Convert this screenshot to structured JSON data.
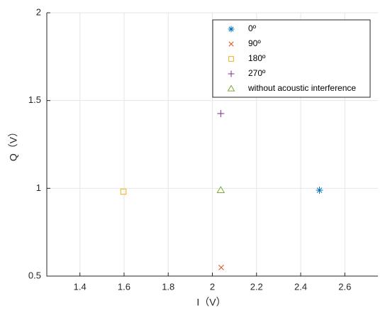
{
  "chart_data": {
    "type": "scatter",
    "xlabel": "I（V）",
    "ylabel": "Q（V）",
    "xlim": [
      1.25,
      2.75
    ],
    "ylim": [
      0.5,
      2
    ],
    "xticks": [
      1.4,
      1.6,
      1.8,
      2,
      2.2,
      2.4,
      2.6
    ],
    "yticks": [
      0.5,
      1,
      1.5,
      2
    ],
    "grid": true,
    "legend": "upper right",
    "series": [
      {
        "name": "0º",
        "color": "#0072BD",
        "marker": "asterisk",
        "x": [
          2.485
        ],
        "values": [
          0.989
        ]
      },
      {
        "name": "90º",
        "color": "#D95319",
        "marker": "cross",
        "x": [
          2.04
        ],
        "values": [
          0.549
        ]
      },
      {
        "name": "180º",
        "color": "#EDB120",
        "marker": "square",
        "x": [
          1.597
        ],
        "values": [
          0.981
        ]
      },
      {
        "name": "270º",
        "color": "#7E2F8E",
        "marker": "plus",
        "x": [
          2.038
        ],
        "values": [
          1.426
        ]
      },
      {
        "name": "without acoustic interference",
        "color": "#77AC30",
        "marker": "triangle",
        "x": [
          2.038
        ],
        "values": [
          0.989
        ]
      }
    ]
  }
}
